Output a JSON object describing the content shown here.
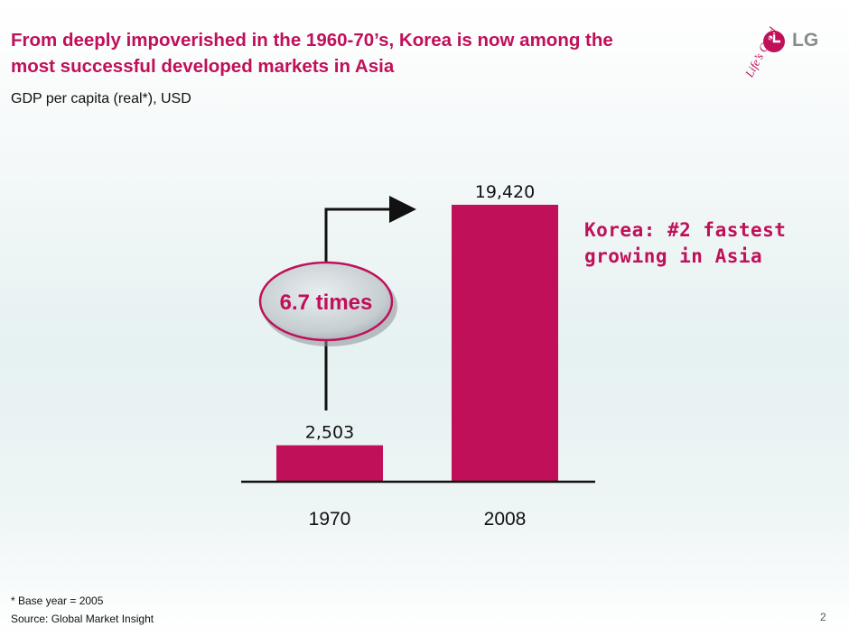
{
  "header": {
    "title": "From deeply impoverished in the 1960-70’s, Korea is now among the most successful developed markets in Asia",
    "subtitle": "GDP per capita (real*), USD"
  },
  "brand": {
    "logo_icon": "lg-logo-icon",
    "logo_text": "LG",
    "tagline": "Life’s Good",
    "color": "#c0105a"
  },
  "callout": {
    "line1": "Korea: #2 fastest",
    "line2": "growing in Asia"
  },
  "growth_badge": {
    "label": "6.7 times"
  },
  "footer": {
    "note": "* Base year = 2005",
    "source": "Source: Global Market Insight",
    "page_number": "2"
  },
  "chart_data": {
    "type": "bar",
    "categories": [
      "1970",
      "2008"
    ],
    "values": [
      2503,
      19420
    ],
    "value_labels": [
      "2,503",
      "19,420"
    ],
    "title": "GDP per capita (real*), USD",
    "xlabel": "",
    "ylabel": "",
    "ylim": [
      0,
      19420
    ],
    "grid": false,
    "bar_color": "#c0105a",
    "annotation": "6.7 times"
  }
}
